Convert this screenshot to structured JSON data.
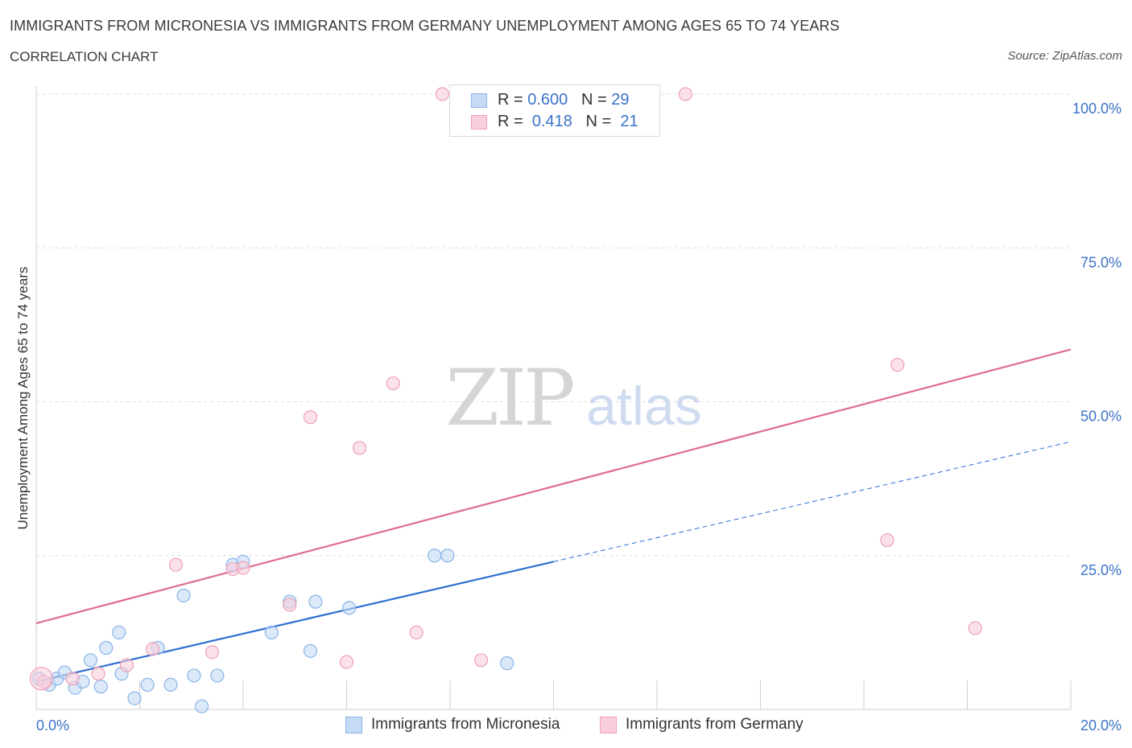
{
  "header": {
    "title": "IMMIGRANTS FROM MICRONESIA VS IMMIGRANTS FROM GERMANY UNEMPLOYMENT AMONG AGES 65 TO 74 YEARS",
    "subtitle": "CORRELATION CHART",
    "source": "Source: ZipAtlas.com"
  },
  "legend": {
    "r_label": "R =",
    "n_label": "N =",
    "rows": [
      {
        "r": "0.600",
        "n": "29",
        "color": "#8ab4e8",
        "fill": "#c5dbf5"
      },
      {
        "r": "0.418",
        "n": "21",
        "color": "#f0a0b8",
        "fill": "#f9cfdc"
      }
    ]
  },
  "chart_data": {
    "type": "scatter",
    "title": "IMMIGRANTS FROM MICRONESIA VS IMMIGRANTS FROM GERMANY UNEMPLOYMENT AMONG AGES 65 TO 74 YEARS",
    "xlabel": "",
    "ylabel": "Unemployment Among Ages 65 to 74 years",
    "xlim": [
      0,
      20
    ],
    "ylim": [
      0,
      100
    ],
    "x_tick_labels": [
      "0.0%",
      "20.0%"
    ],
    "y_tick_labels": [
      "25.0%",
      "50.0%",
      "75.0%",
      "100.0%"
    ],
    "y_ticks": [
      25,
      50,
      75,
      100
    ],
    "grid": true,
    "legend_position": "bottom-center",
    "watermark": {
      "zip": "ZIP",
      "atlas": "atlas"
    },
    "series": [
      {
        "name": "Immigrants from Micronesia",
        "color": "#8ab4e8",
        "fill": "#c5dbf5",
        "line_color": "#2f6fd0",
        "trend": {
          "x": [
            0,
            10
          ],
          "y": [
            4.5,
            24.0
          ],
          "dashed_to": [
            20,
            43.5
          ]
        },
        "points": [
          [
            0.05,
            5.0
          ],
          [
            0.25,
            4.0
          ],
          [
            0.4,
            5.0
          ],
          [
            0.55,
            6.0
          ],
          [
            0.75,
            3.5
          ],
          [
            0.9,
            4.5
          ],
          [
            1.05,
            8.0
          ],
          [
            1.25,
            3.7
          ],
          [
            1.35,
            10.0
          ],
          [
            1.6,
            12.5
          ],
          [
            1.65,
            5.8
          ],
          [
            1.9,
            1.8
          ],
          [
            2.15,
            4.0
          ],
          [
            2.35,
            10.0
          ],
          [
            2.6,
            4.0
          ],
          [
            2.85,
            18.5
          ],
          [
            3.05,
            5.5
          ],
          [
            3.2,
            0.5
          ],
          [
            3.5,
            5.5
          ],
          [
            3.8,
            23.5
          ],
          [
            4.0,
            24.0
          ],
          [
            4.55,
            12.5
          ],
          [
            4.9,
            17.5
          ],
          [
            5.3,
            9.5
          ],
          [
            5.4,
            17.5
          ],
          [
            6.05,
            16.5
          ],
          [
            7.7,
            25.0
          ],
          [
            7.95,
            25.0
          ],
          [
            9.1,
            7.5
          ]
        ]
      },
      {
        "name": "Immigrants from Germany",
        "color": "#f0a0b8",
        "fill": "#f9cfdc",
        "line_color": "#e06a93",
        "trend": {
          "x": [
            0,
            20
          ],
          "y": [
            14.0,
            58.5
          ]
        },
        "points": [
          [
            0.15,
            4.5
          ],
          [
            0.7,
            5.0
          ],
          [
            1.2,
            5.8
          ],
          [
            1.75,
            7.2
          ],
          [
            2.25,
            9.8
          ],
          [
            2.7,
            23.5
          ],
          [
            3.4,
            9.3
          ],
          [
            3.8,
            22.8
          ],
          [
            4.0,
            23.0
          ],
          [
            4.9,
            17.0
          ],
          [
            5.3,
            47.5
          ],
          [
            6.0,
            7.7
          ],
          [
            6.25,
            42.5
          ],
          [
            6.9,
            53.0
          ],
          [
            7.35,
            12.5
          ],
          [
            7.85,
            100.0
          ],
          [
            8.6,
            8.0
          ],
          [
            12.55,
            100.0
          ],
          [
            16.45,
            27.5
          ],
          [
            16.65,
            56.0
          ],
          [
            18.15,
            13.2
          ]
        ]
      }
    ]
  }
}
